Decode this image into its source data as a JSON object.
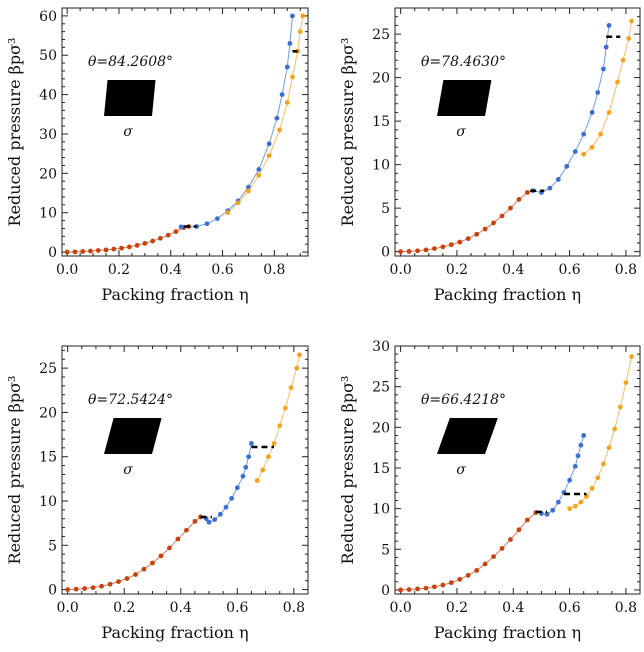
{
  "chart_data": [
    {
      "type": "scatter",
      "title": "",
      "xlabel": "Packing fraction η",
      "ylabel": "Reduced pressure βpσ³",
      "annotation": "θ=84.2608°",
      "shape_label": "σ",
      "shear_offset": 0.11,
      "xlim": [
        -0.02,
        0.93
      ],
      "ylim": [
        -1,
        62
      ],
      "xticks": [
        0.0,
        0.2,
        0.4,
        0.6,
        0.8
      ],
      "yticks": [
        0,
        10,
        20,
        30,
        40,
        50,
        60
      ],
      "colors": {
        "red": "#c8420e",
        "blue": "#3a6fd0",
        "orange": "#f4a31e"
      },
      "series": [
        {
          "color_key": "red",
          "x": [
            0.0,
            0.03,
            0.06,
            0.09,
            0.12,
            0.15,
            0.18,
            0.21,
            0.24,
            0.27,
            0.3,
            0.33,
            0.36,
            0.39,
            0.42,
            0.45,
            0.47
          ],
          "y": [
            0.0,
            0.05,
            0.15,
            0.25,
            0.4,
            0.55,
            0.75,
            1.0,
            1.3,
            1.7,
            2.2,
            2.8,
            3.5,
            4.3,
            5.2,
            6.2,
            6.5
          ]
        },
        {
          "color_key": "blue",
          "x": [
            0.44,
            0.5,
            0.54,
            0.58,
            0.62,
            0.66,
            0.7,
            0.74,
            0.78,
            0.81,
            0.83,
            0.85,
            0.86,
            0.87
          ],
          "y": [
            6.4,
            6.5,
            7.2,
            8.5,
            10.5,
            13.0,
            16.5,
            21.0,
            27.5,
            34.0,
            40.0,
            47.0,
            53.0,
            60.0
          ]
        },
        {
          "color_key": "orange",
          "x": [
            0.62,
            0.66,
            0.7,
            0.74,
            0.78,
            0.82,
            0.85,
            0.87,
            0.89,
            0.9,
            0.91
          ],
          "y": [
            10.0,
            12.5,
            15.5,
            19.5,
            24.5,
            31.0,
            38.0,
            44.5,
            51.0,
            56.0,
            60.0
          ]
        }
      ],
      "coexistence": [
        {
          "x": [
            0.45,
            0.5
          ],
          "y": 6.5
        },
        {
          "x": [
            0.87,
            0.89
          ],
          "y": 51.0
        }
      ]
    },
    {
      "type": "scatter",
      "title": "",
      "xlabel": "Packing fraction η",
      "ylabel": "Reduced pressure βpσ³",
      "annotation": "θ=78.4630°",
      "shape_label": "σ",
      "shear_offset": 0.2,
      "xlim": [
        -0.02,
        0.85
      ],
      "ylim": [
        -0.5,
        28
      ],
      "xticks": [
        0.0,
        0.2,
        0.4,
        0.6,
        0.8
      ],
      "yticks": [
        0,
        5,
        10,
        15,
        20,
        25
      ],
      "colors": {
        "red": "#c8420e",
        "blue": "#3a6fd0",
        "orange": "#f4a31e"
      },
      "series": [
        {
          "color_key": "red",
          "x": [
            0.0,
            0.03,
            0.06,
            0.09,
            0.12,
            0.15,
            0.18,
            0.21,
            0.24,
            0.27,
            0.3,
            0.33,
            0.36,
            0.39,
            0.42,
            0.45,
            0.47
          ],
          "y": [
            0.0,
            0.03,
            0.1,
            0.2,
            0.35,
            0.55,
            0.8,
            1.1,
            1.5,
            2.0,
            2.6,
            3.3,
            4.1,
            5.0,
            6.0,
            6.8,
            7.0
          ]
        },
        {
          "color_key": "blue",
          "x": [
            0.47,
            0.5,
            0.53,
            0.56,
            0.59,
            0.62,
            0.65,
            0.68,
            0.7,
            0.72,
            0.73,
            0.74
          ],
          "y": [
            7.0,
            6.8,
            7.3,
            8.3,
            9.8,
            11.5,
            13.5,
            16.0,
            18.3,
            21.0,
            23.5,
            26.0
          ]
        },
        {
          "color_key": "orange",
          "x": [
            0.65,
            0.68,
            0.71,
            0.74,
            0.77,
            0.79,
            0.81,
            0.82
          ],
          "y": [
            11.2,
            12.0,
            13.5,
            16.0,
            19.5,
            22.0,
            24.5,
            26.5
          ]
        }
      ],
      "coexistence": [
        {
          "x": [
            0.46,
            0.51
          ],
          "y": 7.0
        },
        {
          "x": [
            0.73,
            0.78
          ],
          "y": 24.7
        }
      ]
    },
    {
      "type": "scatter",
      "title": "",
      "xlabel": "Packing fraction η",
      "ylabel": "Reduced pressure βpσ³",
      "annotation": "θ=72.5424°",
      "shape_label": "σ",
      "shear_offset": 0.3,
      "xlim": [
        -0.02,
        0.85
      ],
      "ylim": [
        -0.5,
        27.5
      ],
      "xticks": [
        0.0,
        0.2,
        0.4,
        0.6,
        0.8
      ],
      "yticks": [
        0,
        5,
        10,
        15,
        20,
        25
      ],
      "colors": {
        "red": "#c8420e",
        "blue": "#3a6fd0",
        "orange": "#f4a31e"
      },
      "series": [
        {
          "color_key": "red",
          "x": [
            0.0,
            0.03,
            0.06,
            0.09,
            0.12,
            0.15,
            0.18,
            0.21,
            0.24,
            0.27,
            0.3,
            0.33,
            0.36,
            0.39,
            0.42,
            0.45,
            0.47
          ],
          "y": [
            0.0,
            0.05,
            0.12,
            0.22,
            0.38,
            0.6,
            0.9,
            1.25,
            1.7,
            2.3,
            3.0,
            3.8,
            4.7,
            5.7,
            6.7,
            7.7,
            8.2
          ]
        },
        {
          "color_key": "blue",
          "x": [
            0.49,
            0.5,
            0.52,
            0.54,
            0.56,
            0.58,
            0.6,
            0.62,
            0.63,
            0.64,
            0.65
          ],
          "y": [
            8.0,
            7.6,
            7.9,
            8.5,
            9.3,
            10.3,
            11.5,
            12.8,
            13.8,
            15.0,
            16.5
          ]
        },
        {
          "color_key": "orange",
          "x": [
            0.67,
            0.69,
            0.71,
            0.73,
            0.75,
            0.77,
            0.79,
            0.81,
            0.82
          ],
          "y": [
            12.3,
            13.5,
            15.0,
            16.5,
            18.5,
            20.5,
            22.8,
            25.0,
            26.5
          ]
        }
      ],
      "coexistence": [
        {
          "x": [
            0.47,
            0.51
          ],
          "y": 8.2
        },
        {
          "x": [
            0.65,
            0.73
          ],
          "y": 16.1
        }
      ]
    },
    {
      "type": "scatter",
      "title": "",
      "xlabel": "Packing fraction η",
      "ylabel": "Reduced pressure βpσ³",
      "annotation": "θ=66.4218°",
      "shape_label": "σ",
      "shear_offset": 0.4,
      "xlim": [
        -0.02,
        0.85
      ],
      "ylim": [
        -0.5,
        30
      ],
      "xticks": [
        0.0,
        0.2,
        0.4,
        0.6,
        0.8
      ],
      "yticks": [
        0,
        5,
        10,
        15,
        20,
        25,
        30
      ],
      "colors": {
        "red": "#c8420e",
        "blue": "#3a6fd0",
        "orange": "#f4a31e"
      },
      "series": [
        {
          "color_key": "red",
          "x": [
            0.0,
            0.03,
            0.06,
            0.09,
            0.12,
            0.15,
            0.18,
            0.21,
            0.24,
            0.27,
            0.3,
            0.33,
            0.36,
            0.39,
            0.42,
            0.45,
            0.48
          ],
          "y": [
            0.0,
            0.05,
            0.12,
            0.22,
            0.38,
            0.6,
            0.9,
            1.3,
            1.8,
            2.4,
            3.2,
            4.1,
            5.1,
            6.2,
            7.4,
            8.6,
            9.5
          ]
        },
        {
          "color_key": "blue",
          "x": [
            0.5,
            0.52,
            0.54,
            0.56,
            0.58,
            0.6,
            0.62,
            0.63,
            0.64,
            0.65
          ],
          "y": [
            9.4,
            9.3,
            9.8,
            10.8,
            12.0,
            13.5,
            15.2,
            16.5,
            17.8,
            19.0
          ]
        },
        {
          "color_key": "orange",
          "x": [
            0.6,
            0.62,
            0.64,
            0.66,
            0.68,
            0.7,
            0.72,
            0.74,
            0.76,
            0.78,
            0.8,
            0.82
          ],
          "y": [
            10.0,
            10.3,
            10.8,
            11.5,
            12.5,
            13.8,
            15.5,
            17.5,
            19.8,
            22.5,
            25.5,
            28.7
          ]
        }
      ],
      "coexistence": [
        {
          "x": [
            0.48,
            0.52
          ],
          "y": 9.6
        },
        {
          "x": [
            0.58,
            0.66
          ],
          "y": 11.8
        }
      ]
    }
  ]
}
